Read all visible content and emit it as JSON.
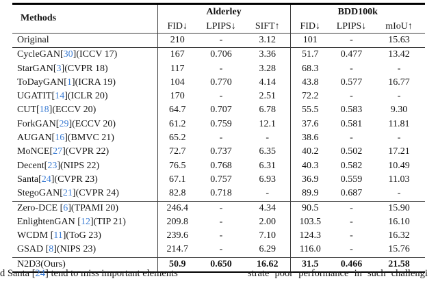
{
  "colors": {
    "citation_blue": "#3b7cd3",
    "text": "#141414",
    "rule": "#000000"
  },
  "table": {
    "methods_header": "Methods",
    "groups": [
      {
        "label": "Alderley",
        "columns": [
          "FID↓",
          "LPIPS↓",
          "SIFT↑"
        ]
      },
      {
        "label": "BDD100k",
        "columns": [
          "FID↓",
          "LPIPS↓",
          "mIoU↑"
        ]
      }
    ],
    "rows": [
      {
        "method_pre": "Original",
        "cite": "",
        "method_post": "",
        "values": [
          "210",
          "-",
          "3.12",
          "101",
          "-",
          "15.63"
        ],
        "bold": false,
        "rule_below": true
      },
      {
        "method_pre": "CycleGAN[",
        "cite": "30",
        "method_post": "](ICCV 17)",
        "values": [
          "167",
          "0.706",
          "3.36",
          "51.7",
          "0.477",
          "13.42"
        ],
        "bold": false,
        "rule_below": false
      },
      {
        "method_pre": "StarGAN[",
        "cite": "3",
        "method_post": "](CVPR 18)",
        "values": [
          "117",
          "-",
          "3.28",
          "68.3",
          "-",
          "-"
        ],
        "bold": false,
        "rule_below": false
      },
      {
        "method_pre": "ToDayGAN[",
        "cite": "1",
        "method_post": "](ICRA 19)",
        "values": [
          "104",
          "0.770",
          "4.14",
          "43.8",
          "0.577",
          "16.77"
        ],
        "bold": false,
        "rule_below": false
      },
      {
        "method_pre": "UGATIT[",
        "cite": "14",
        "method_post": "](ICLR 20)",
        "values": [
          "170",
          "-",
          "2.51",
          "72.2",
          "-",
          "-"
        ],
        "bold": false,
        "rule_below": false
      },
      {
        "method_pre": "CUT[",
        "cite": "18",
        "method_post": "](ECCV 20)",
        "values": [
          "64.7",
          "0.707",
          "6.78",
          "55.5",
          "0.583",
          "9.30"
        ],
        "bold": false,
        "rule_below": false
      },
      {
        "method_pre": "ForkGAN[",
        "cite": "29",
        "method_post": "](ECCV 20)",
        "values": [
          "61.2",
          "0.759",
          "12.1",
          "37.6",
          "0.581",
          "11.81"
        ],
        "bold": false,
        "rule_below": false
      },
      {
        "method_pre": "AUGAN[",
        "cite": "16",
        "method_post": "](BMVC 21)",
        "values": [
          "65.2",
          "-",
          "-",
          "38.6",
          "-",
          "-"
        ],
        "bold": false,
        "rule_below": false
      },
      {
        "method_pre": "MoNCE[",
        "cite": "27",
        "method_post": "](CVPR 22)",
        "values": [
          "72.7",
          "0.737",
          "6.35",
          "40.2",
          "0.502",
          "17.21"
        ],
        "bold": false,
        "rule_below": false
      },
      {
        "method_pre": "Decent[",
        "cite": "23",
        "method_post": "](NIPS 22)",
        "values": [
          "76.5",
          "0.768",
          "6.31",
          "40.3",
          "0.582",
          "10.49"
        ],
        "bold": false,
        "rule_below": false
      },
      {
        "method_pre": "Santa[",
        "cite": "24",
        "method_post": "](CVPR 23)",
        "values": [
          "67.1",
          "0.757",
          "6.93",
          "36.9",
          "0.559",
          "11.03"
        ],
        "bold": false,
        "rule_below": false
      },
      {
        "method_pre": "StegoGAN[",
        "cite": "21",
        "method_post": "](CVPR 24)",
        "values": [
          "82.8",
          "0.718",
          "-",
          "89.9",
          "0.687",
          "-"
        ],
        "bold": false,
        "rule_below": true
      },
      {
        "method_pre": "Zero-DCE [",
        "cite": "6",
        "method_post": "](TPAMI 20)",
        "values": [
          "246.4",
          "-",
          "4.34",
          "90.5",
          "-",
          "15.90"
        ],
        "bold": false,
        "rule_below": false
      },
      {
        "method_pre": "EnlightenGAN [",
        "cite": "12",
        "method_post": "](TIP 21)",
        "values": [
          "209.8",
          "-",
          "2.00",
          "103.5",
          "-",
          "16.10"
        ],
        "bold": false,
        "rule_below": false
      },
      {
        "method_pre": "WCDM [",
        "cite": "11",
        "method_post": "](ToG 23)",
        "values": [
          "239.6",
          "-",
          "7.10",
          "124.3",
          "-",
          "16.32"
        ],
        "bold": false,
        "rule_below": false
      },
      {
        "method_pre": "GSAD [",
        "cite": "8",
        "method_post": "](NIPS 23)",
        "values": [
          "214.7",
          "-",
          "6.29",
          "116.0",
          "-",
          "15.76"
        ],
        "bold": false,
        "rule_below": true
      },
      {
        "method_pre": "N2D3(Ours)",
        "cite": "",
        "method_post": "",
        "values": [
          "50.9",
          "0.650",
          "16.62",
          "31.5",
          "0.466",
          "21.58"
        ],
        "bold": true,
        "rule_below": false
      }
    ]
  },
  "footer": {
    "left_pre": "d Santa [",
    "left_cite": "24",
    "left_post": "] tend to miss important elements",
    "right_text": "strate poor performance in such challengi"
  }
}
